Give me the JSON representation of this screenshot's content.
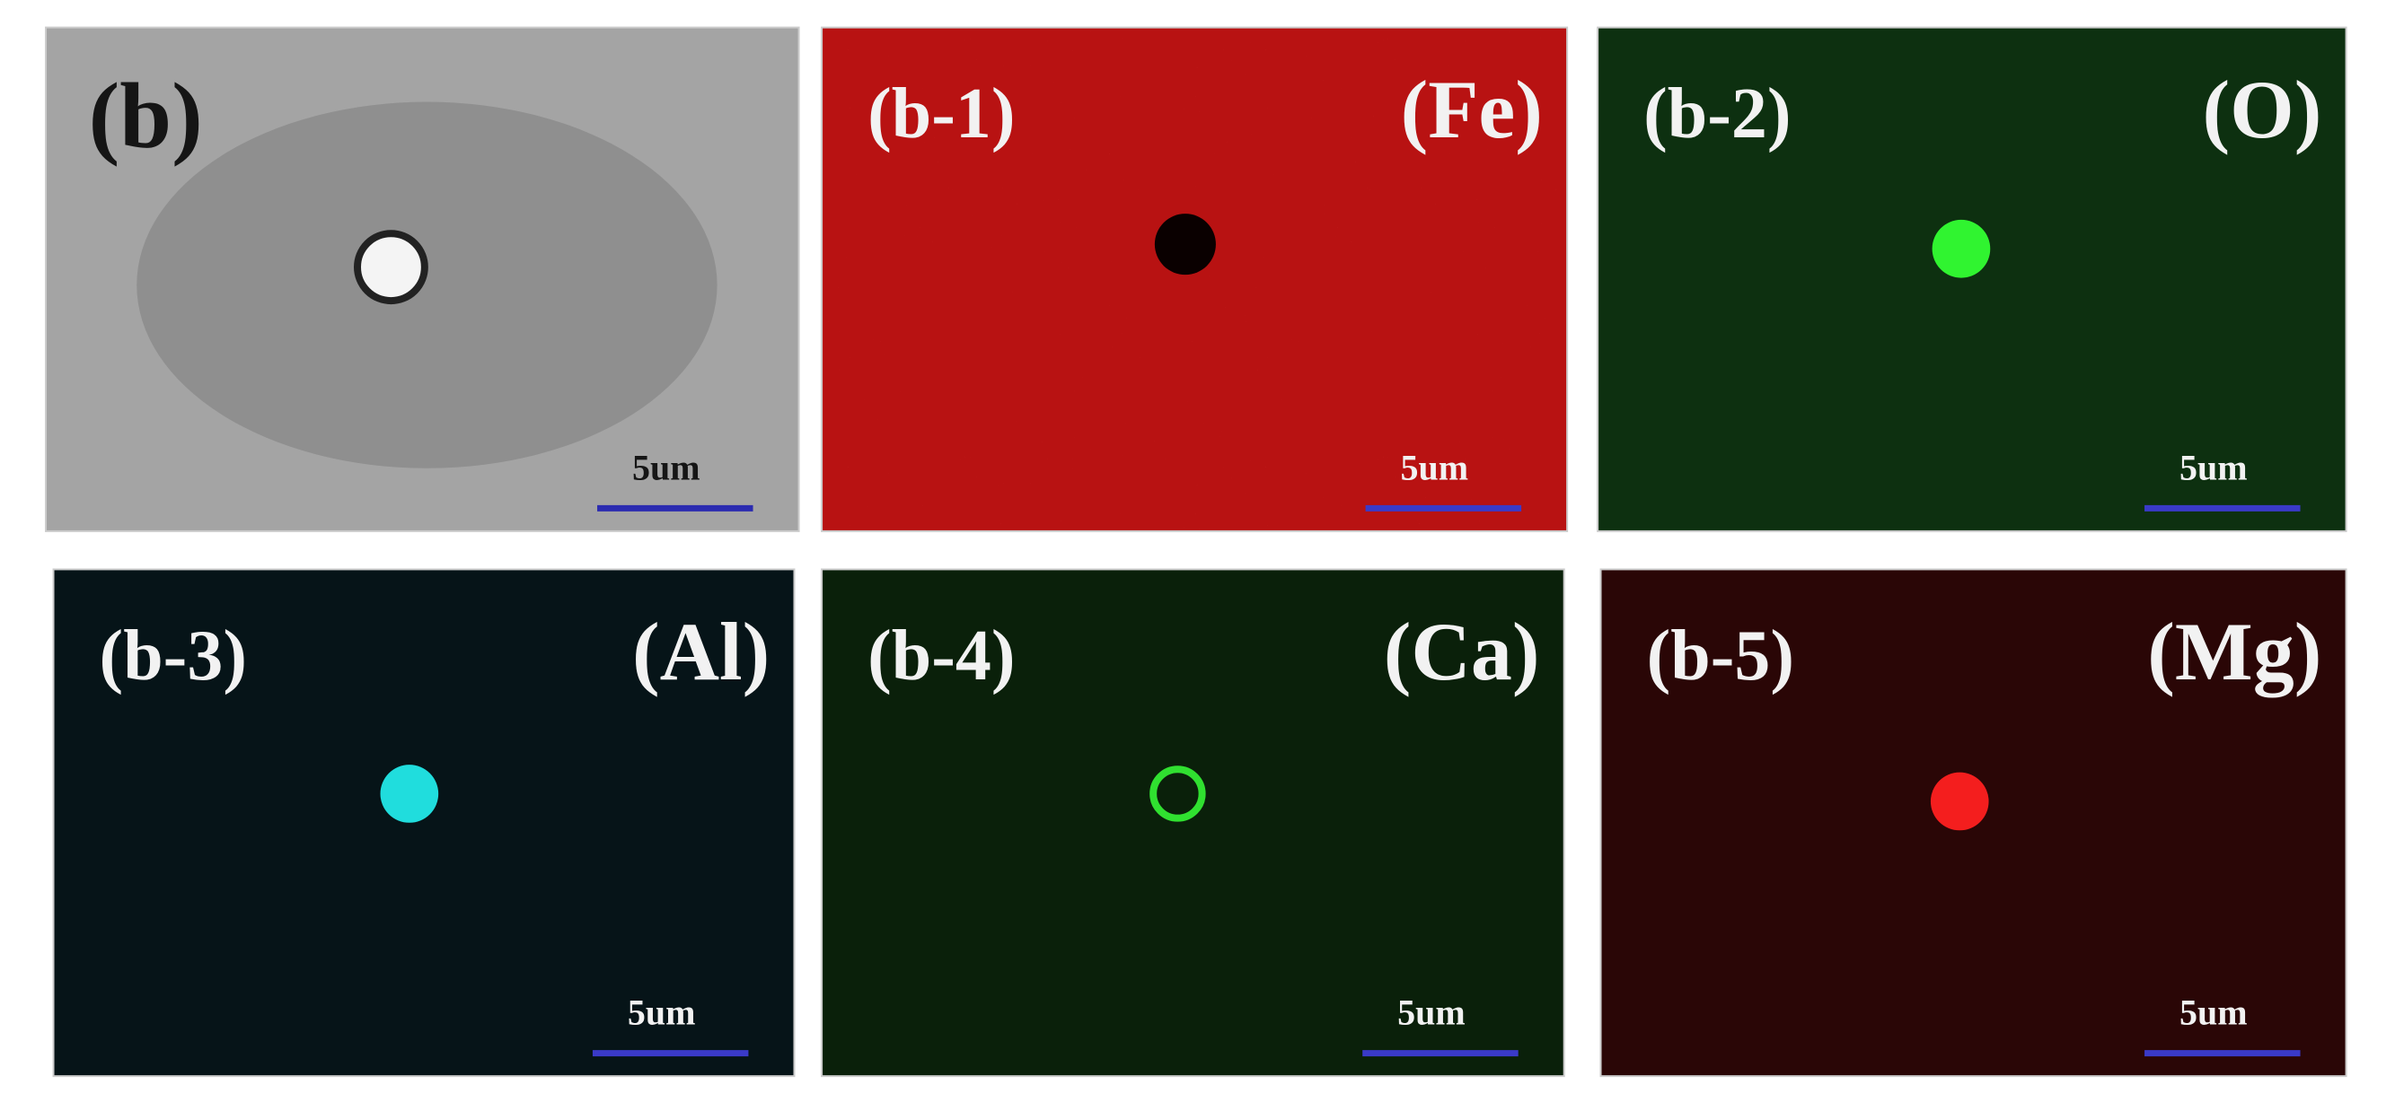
{
  "panels": [
    {
      "label": "(b)",
      "scale": "5um"
    },
    {
      "label": "(b-1)",
      "element": "(Fe)",
      "scale": "5um"
    },
    {
      "label": "(b-2)",
      "element": "(O)",
      "scale": "5um"
    },
    {
      "label": "(b-3)",
      "element": "(Al)",
      "scale": "5um"
    },
    {
      "label": "(b-4)",
      "element": "(Ca)",
      "scale": "5um"
    },
    {
      "label": "(b-5)",
      "element": "(Mg)",
      "scale": "5um"
    }
  ]
}
